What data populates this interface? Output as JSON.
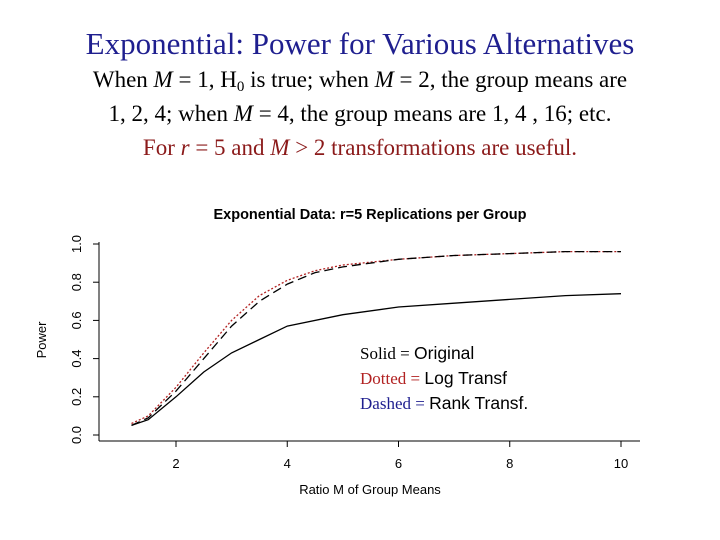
{
  "slide": {
    "title": "Exponential: Power for Various Alternatives",
    "line1": {
      "a": "When ",
      "m": "M",
      "b": " = 1, H",
      "sub": "0",
      "c": " is true; when ",
      "m2": "M",
      "d": " = 2, the group means are"
    },
    "line2": {
      "a": "1, 2, 4; when ",
      "m": "M",
      "b": " = 4, the group means are 1, 4 , 16; etc."
    },
    "line3": {
      "a": "For ",
      "r": "r",
      "b": " = 5 and ",
      "m": "M",
      "c": " > 2 transformations are useful."
    }
  },
  "legend": {
    "solid_prefix": "Solid = ",
    "solid_label": "Original",
    "dotted_prefix": "Dotted = ",
    "dotted_label": "Log  Transf",
    "dashed_prefix": "Dashed = ",
    "dashed_label": "Rank Transf."
  },
  "colors": {
    "title": "#1f1f8f",
    "accent_red": "#b22222",
    "dotted_series": "#b22222",
    "lines": "#000000"
  },
  "chart_data": {
    "type": "line",
    "title": "Exponential Data: r=5 Replications per Group",
    "xlabel": "Ratio M of Group Means",
    "ylabel": "Power",
    "xlim": [
      1,
      10
    ],
    "ylim": [
      0,
      1
    ],
    "xticks": [
      2,
      4,
      6,
      8,
      10
    ],
    "yticks": [
      0.0,
      0.2,
      0.4,
      0.6,
      0.8,
      1.0
    ],
    "ytick_labels": [
      "0.0",
      "0.2",
      "0.4",
      "0.6",
      "0.8",
      "1.0"
    ],
    "grid": false,
    "series": [
      {
        "name": "Solid = Original",
        "style": "solid",
        "color": "#000000",
        "x": [
          1.2,
          1.5,
          2,
          2.5,
          3,
          3.5,
          4,
          5,
          6,
          7,
          8,
          9,
          10
        ],
        "y": [
          0.05,
          0.08,
          0.2,
          0.33,
          0.43,
          0.5,
          0.57,
          0.63,
          0.67,
          0.69,
          0.71,
          0.73,
          0.74
        ]
      },
      {
        "name": "Dotted = Log  Transf",
        "style": "dotted",
        "color": "#b22222",
        "x": [
          1.2,
          1.5,
          2,
          2.5,
          3,
          3.5,
          4,
          4.5,
          5,
          6,
          7,
          8,
          9,
          10
        ],
        "y": [
          0.06,
          0.1,
          0.25,
          0.43,
          0.6,
          0.73,
          0.81,
          0.86,
          0.89,
          0.92,
          0.94,
          0.95,
          0.96,
          0.96
        ]
      },
      {
        "name": "Dashed = Rank Transf.",
        "style": "dashed",
        "color": "#000000",
        "x": [
          1.2,
          1.5,
          2,
          2.5,
          3,
          3.5,
          4,
          4.5,
          5,
          6,
          7,
          8,
          9,
          10
        ],
        "y": [
          0.05,
          0.09,
          0.23,
          0.4,
          0.57,
          0.7,
          0.79,
          0.85,
          0.88,
          0.92,
          0.94,
          0.95,
          0.96,
          0.96
        ]
      }
    ]
  }
}
